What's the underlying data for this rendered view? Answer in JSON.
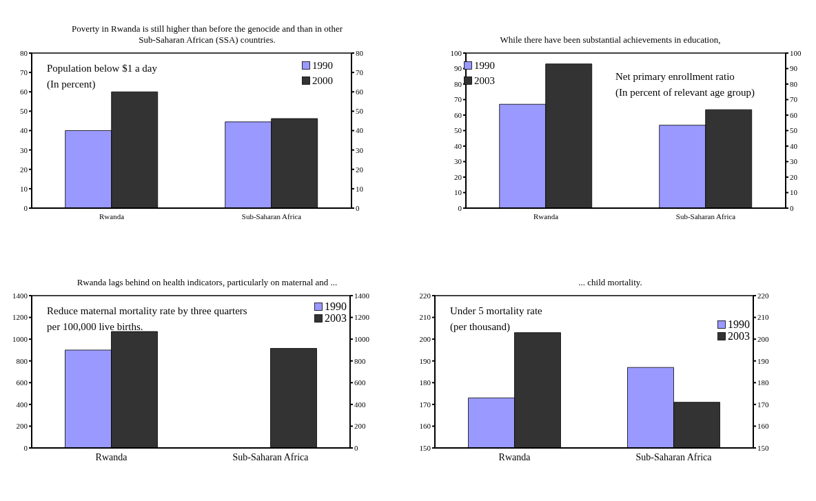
{
  "chart_data": [
    {
      "type": "bar",
      "title": "Poverty in Rwanda is still higher than before the genocide and than in other  Sub-Saharan African (SSA) countries.",
      "categories": [
        "Rwanda",
        "Sub-Saharan Africa"
      ],
      "series": [
        {
          "name": "1990",
          "color": "#9999ff",
          "values": [
            40,
            44.5
          ]
        },
        {
          "name": "2000",
          "color": "#333333",
          "values": [
            60,
            46.2
          ]
        }
      ],
      "ylim": [
        0,
        80
      ],
      "yticks": [
        0,
        10,
        20,
        30,
        40,
        50,
        60,
        70,
        80
      ],
      "y2lim": [
        0,
        80
      ],
      "y2ticks": [
        0,
        10,
        20,
        30,
        40,
        50,
        60,
        70,
        80
      ],
      "legend": "top right",
      "annotations": [
        "Population below $1 a day",
        "(In percent)"
      ]
    },
    {
      "type": "bar",
      "title": "While there have been substantial achievements in education,",
      "categories": [
        "Rwanda",
        "Sub-Saharan Africa"
      ],
      "series": [
        {
          "name": "1990",
          "color": "#9999ff",
          "values": [
            67,
            53.5
          ]
        },
        {
          "name": "2003",
          "color": "#333333",
          "values": [
            93,
            63.5
          ]
        }
      ],
      "ylim": [
        0,
        100
      ],
      "yticks": [
        0,
        10,
        20,
        30,
        40,
        50,
        60,
        70,
        80,
        90,
        100
      ],
      "y2lim": [
        0,
        100
      ],
      "y2ticks": [
        0,
        10,
        20,
        30,
        40,
        50,
        60,
        70,
        80,
        90,
        100
      ],
      "legend": "top left",
      "annotations": [
        "Net primary enrollment ratio",
        "(In percent of relevant age group)"
      ]
    },
    {
      "type": "bar",
      "title": "Rwanda lags behind on health indicators, particularly on maternal and ...",
      "categories": [
        "Rwanda",
        "Sub-Saharan Africa"
      ],
      "series": [
        {
          "name": "1990",
          "color": "#9999ff",
          "values": [
            900,
            null
          ]
        },
        {
          "name": "2003",
          "color": "#333333",
          "values": [
            1070,
            915
          ]
        }
      ],
      "ylim": [
        0,
        1400
      ],
      "yticks": [
        0,
        200,
        400,
        600,
        800,
        1000,
        1200,
        1400
      ],
      "y2lim": [
        0,
        1400
      ],
      "y2ticks": [
        0,
        200,
        400,
        600,
        800,
        1000,
        1200,
        1400
      ],
      "legend": "top right",
      "annotations": [
        "Reduce maternal mortality rate by three quarters",
        "per 100,000 live births."
      ]
    },
    {
      "type": "bar",
      "title": "... child mortality.",
      "categories": [
        "Rwanda",
        "Sub-Saharan Africa"
      ],
      "series": [
        {
          "name": "1990",
          "color": "#9999ff",
          "values": [
            173,
            187
          ]
        },
        {
          "name": "2003",
          "color": "#333333",
          "values": [
            203,
            171
          ]
        }
      ],
      "ylim": [
        150,
        220
      ],
      "yticks": [
        150,
        160,
        170,
        180,
        190,
        200,
        210,
        220
      ],
      "y2lim": [
        150,
        220
      ],
      "y2ticks": [
        150,
        160,
        170,
        180,
        190,
        200,
        210,
        220
      ],
      "legend": "top right",
      "annotations": [
        "Under 5 mortality rate",
        "(per thousand)"
      ]
    }
  ]
}
